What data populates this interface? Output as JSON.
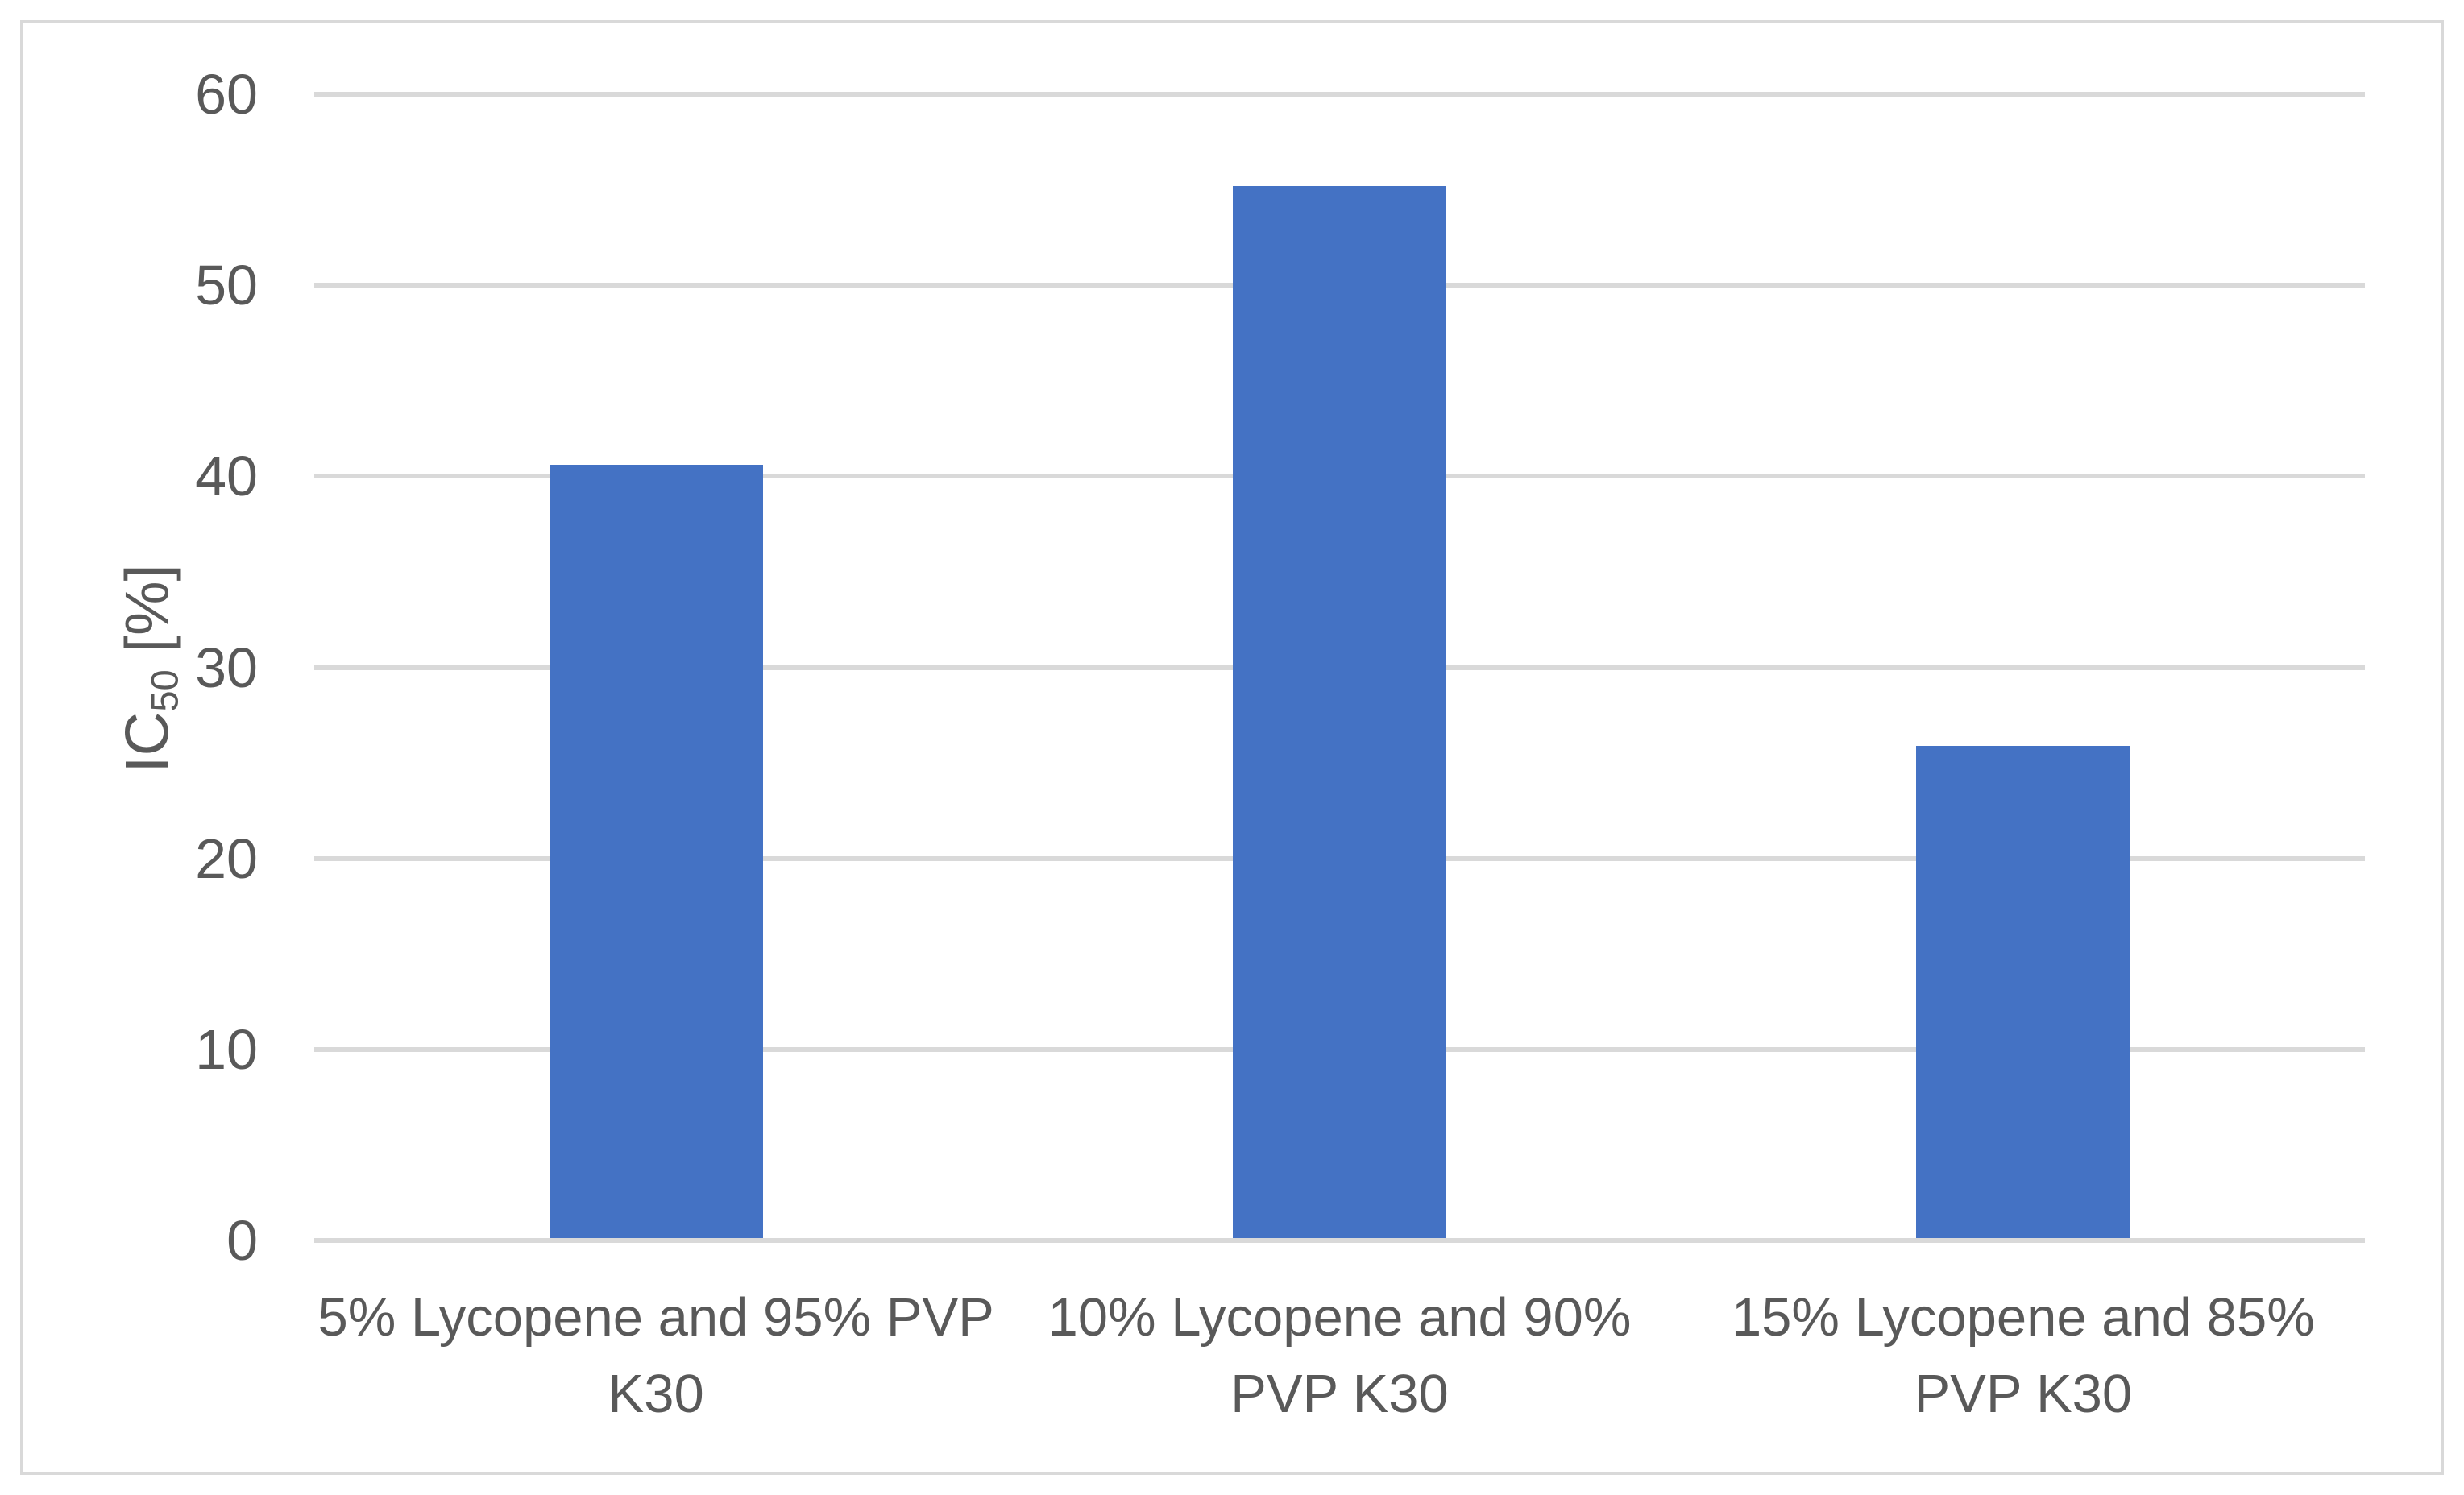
{
  "chart_data": {
    "type": "bar",
    "title": "",
    "xlabel": "",
    "ylabel": "IC50 [%]",
    "ylabel_parts": {
      "pre": "IC",
      "sub": "50",
      "post": " [%]"
    },
    "categories": [
      "5% Lycopene and 95% PVP K30",
      "10% Lycopene and 90% PVP K30",
      "15% Lycopene and 85% PVP K30"
    ],
    "categories_wrapped": [
      [
        "5% Lycopene and 95% PVP",
        "K30"
      ],
      [
        "10% Lycopene and 90%",
        "PVP K30"
      ],
      [
        "15% Lycopene and 85%",
        "PVP K30"
      ]
    ],
    "values": [
      40.6,
      55.2,
      25.9
    ],
    "ylim": [
      0,
      60
    ],
    "yticks": [
      0,
      10,
      20,
      30,
      40,
      50,
      60
    ],
    "grid": true,
    "legend": false,
    "colors": {
      "bar": "#4472C4",
      "gridline": "#D9D9D9",
      "axis_line": "#D9D9D9",
      "text": "#595959",
      "frame_border": "#D9D9D9",
      "background": "#FFFFFF"
    }
  }
}
